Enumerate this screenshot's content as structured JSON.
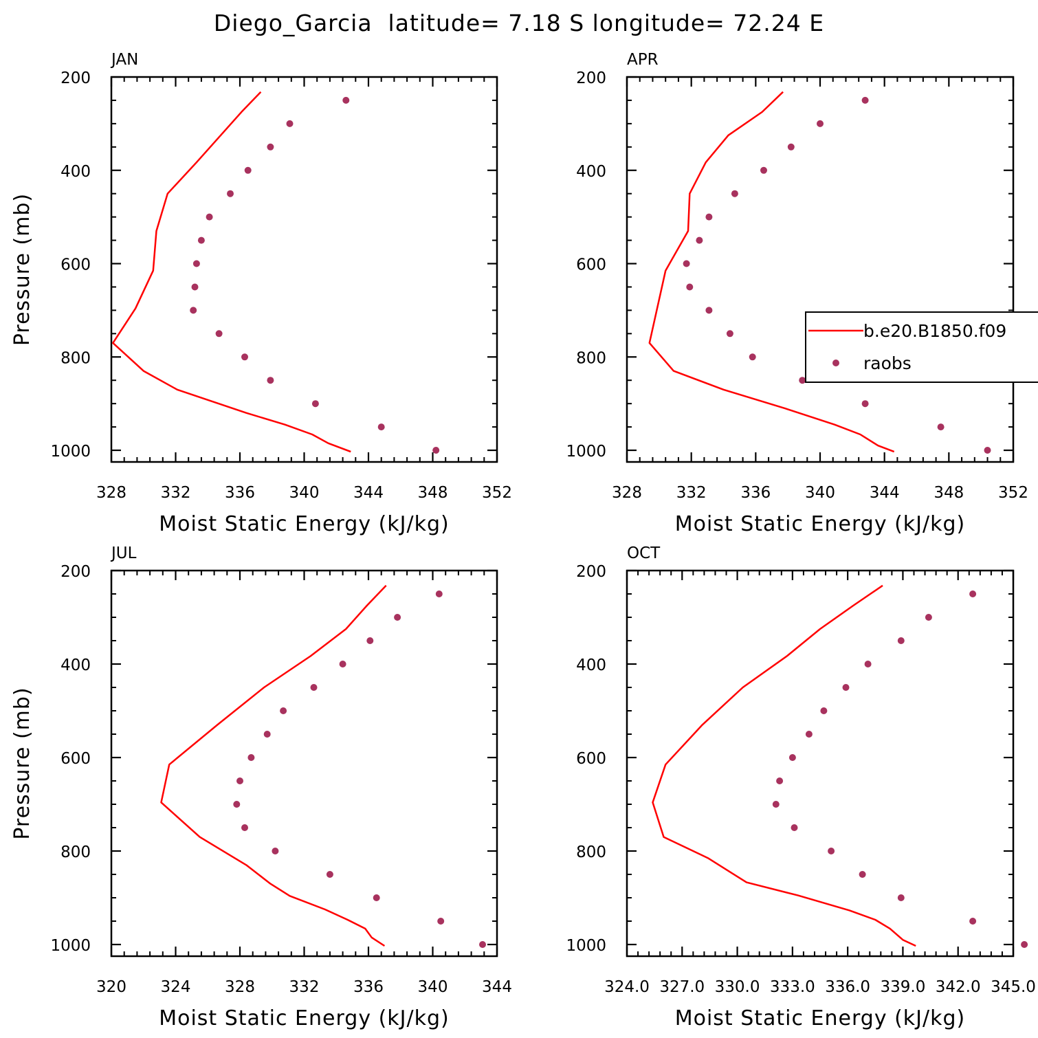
{
  "figure_title": "Diego_Garcia  latitude= 7.18 S longitude= 72.24 E",
  "colors": {
    "model": "#ff0000",
    "obs": "#a8325e",
    "axis": "#000000"
  },
  "legend": {
    "items": [
      {
        "label": "b.e20.B1850.f09",
        "style": "line"
      },
      {
        "label": "raobs",
        "style": "marker"
      }
    ]
  },
  "chart_data": [
    {
      "type": "line",
      "title": "JAN",
      "xlabel": "Moist Static Energy (kJ/kg)",
      "ylabel": "Pressure (mb)",
      "xlim": [
        328,
        352
      ],
      "ylim": [
        200,
        1025
      ],
      "y_reversed": true,
      "xticks": [
        328,
        332,
        336,
        340,
        344,
        348,
        352
      ],
      "xtick_labels": [
        "328",
        "332",
        "336",
        "340",
        "344",
        "348",
        "352"
      ],
      "yticks": [
        200,
        400,
        600,
        800,
        1000
      ],
      "yminor": [
        250,
        300,
        350,
        450,
        500,
        550,
        650,
        700,
        750,
        850,
        900,
        950
      ],
      "series": [
        {
          "name": "b.e20.B1850.f09",
          "style": "line",
          "points": [
            [
              337.3,
              232
            ],
            [
              336.1,
              275
            ],
            [
              333.3,
              383
            ],
            [
              331.5,
              450
            ],
            [
              330.8,
              530
            ],
            [
              330.6,
              615
            ],
            [
              329.5,
              696
            ],
            [
              328.1,
              770
            ],
            [
              330.0,
              830
            ],
            [
              332.1,
              870
            ],
            [
              336.4,
              920
            ],
            [
              338.8,
              945
            ],
            [
              340.5,
              966
            ],
            [
              341.5,
              985
            ],
            [
              342.9,
              1003
            ]
          ]
        },
        {
          "name": "raobs",
          "style": "marker",
          "points": [
            [
              342.6,
              250
            ],
            [
              339.1,
              300
            ],
            [
              337.9,
              350
            ],
            [
              336.5,
              400
            ],
            [
              335.4,
              450
            ],
            [
              334.1,
              500
            ],
            [
              333.6,
              550
            ],
            [
              333.3,
              600
            ],
            [
              333.2,
              650
            ],
            [
              333.1,
              700
            ],
            [
              334.7,
              750
            ],
            [
              336.3,
              800
            ],
            [
              337.9,
              850
            ],
            [
              340.7,
              900
            ],
            [
              344.8,
              950
            ],
            [
              348.2,
              1000
            ]
          ]
        }
      ]
    },
    {
      "type": "line",
      "title": "APR",
      "xlabel": "Moist Static Energy (kJ/kg)",
      "ylabel": "",
      "xlim": [
        328,
        352
      ],
      "ylim": [
        200,
        1025
      ],
      "y_reversed": true,
      "xticks": [
        328,
        332,
        336,
        340,
        344,
        348,
        352
      ],
      "xtick_labels": [
        "328",
        "332",
        "336",
        "340",
        "344",
        "348",
        "352"
      ],
      "yticks": [
        200,
        400,
        600,
        800,
        1000
      ],
      "yminor": [
        250,
        300,
        350,
        450,
        500,
        550,
        650,
        700,
        750,
        850,
        900,
        950
      ],
      "series": [
        {
          "name": "b.e20.B1850.f09",
          "style": "line",
          "points": [
            [
              337.7,
              232
            ],
            [
              336.4,
              275
            ],
            [
              334.3,
              325
            ],
            [
              332.9,
              383
            ],
            [
              331.9,
              450
            ],
            [
              331.8,
              530
            ],
            [
              330.4,
              615
            ],
            [
              329.4,
              770
            ],
            [
              330.9,
              830
            ],
            [
              334.0,
              870
            ],
            [
              337.8,
              910
            ],
            [
              340.9,
              945
            ],
            [
              342.5,
              966
            ],
            [
              343.6,
              990
            ],
            [
              344.6,
              1003
            ]
          ]
        },
        {
          "name": "raobs",
          "style": "marker",
          "points": [
            [
              342.8,
              250
            ],
            [
              340.0,
              300
            ],
            [
              338.2,
              350
            ],
            [
              336.5,
              400
            ],
            [
              334.7,
              450
            ],
            [
              333.1,
              500
            ],
            [
              332.5,
              550
            ],
            [
              331.7,
              600
            ],
            [
              331.9,
              650
            ],
            [
              333.1,
              700
            ],
            [
              334.4,
              750
            ],
            [
              335.8,
              800
            ],
            [
              338.9,
              850
            ],
            [
              342.8,
              900
            ],
            [
              347.5,
              950
            ],
            [
              350.4,
              1000
            ]
          ]
        }
      ]
    },
    {
      "type": "line",
      "title": "JUL",
      "xlabel": "Moist Static Energy (kJ/kg)",
      "ylabel": "Pressure (mb)",
      "xlim": [
        320,
        344
      ],
      "ylim": [
        200,
        1025
      ],
      "y_reversed": true,
      "xticks": [
        320,
        324,
        328,
        332,
        336,
        340,
        344
      ],
      "xtick_labels": [
        "320",
        "324",
        "328",
        "332",
        "336",
        "340",
        "344"
      ],
      "yticks": [
        200,
        400,
        600,
        800,
        1000
      ],
      "yminor": [
        250,
        300,
        350,
        450,
        500,
        550,
        650,
        700,
        750,
        850,
        900,
        950
      ],
      "series": [
        {
          "name": "b.e20.B1850.f09",
          "style": "line",
          "points": [
            [
              337.1,
              232
            ],
            [
              335.9,
              275
            ],
            [
              334.6,
              325
            ],
            [
              332.4,
              383
            ],
            [
              329.5,
              450
            ],
            [
              326.6,
              530
            ],
            [
              323.6,
              615
            ],
            [
              323.1,
              696
            ],
            [
              325.5,
              770
            ],
            [
              328.4,
              830
            ],
            [
              329.9,
              870
            ],
            [
              331.1,
              896
            ],
            [
              333.3,
              925
            ],
            [
              334.7,
              947
            ],
            [
              335.8,
              966
            ],
            [
              336.2,
              985
            ],
            [
              337.0,
              1003
            ]
          ]
        },
        {
          "name": "raobs",
          "style": "marker",
          "points": [
            [
              340.4,
              250
            ],
            [
              337.8,
              300
            ],
            [
              336.1,
              350
            ],
            [
              334.4,
              400
            ],
            [
              332.6,
              450
            ],
            [
              330.7,
              500
            ],
            [
              329.7,
              550
            ],
            [
              328.7,
              600
            ],
            [
              328.0,
              650
            ],
            [
              327.8,
              700
            ],
            [
              328.3,
              750
            ],
            [
              330.2,
              800
            ],
            [
              333.6,
              850
            ],
            [
              336.5,
              900
            ],
            [
              340.5,
              950
            ],
            [
              343.1,
              1000
            ]
          ]
        }
      ]
    },
    {
      "type": "line",
      "title": "OCT",
      "xlabel": "Moist Static Energy (kJ/kg)",
      "ylabel": "",
      "xlim": [
        324,
        345
      ],
      "ylim": [
        200,
        1025
      ],
      "y_reversed": true,
      "xticks": [
        324,
        327,
        330,
        333,
        336,
        339,
        342,
        345
      ],
      "xtick_labels": [
        "324.0",
        "327.0",
        "330.0",
        "333.0",
        "336.0",
        "339.0",
        "342.0",
        "345.0"
      ],
      "yticks": [
        200,
        400,
        600,
        800,
        1000
      ],
      "yminor": [
        250,
        300,
        350,
        450,
        500,
        550,
        650,
        700,
        750,
        850,
        900,
        950
      ],
      "series": [
        {
          "name": "b.e20.B1850.f09",
          "style": "line",
          "points": [
            [
              337.9,
              232
            ],
            [
              336.3,
              275
            ],
            [
              334.5,
              325
            ],
            [
              332.7,
              383
            ],
            [
              330.3,
              450
            ],
            [
              328.1,
              530
            ],
            [
              326.1,
              615
            ],
            [
              325.4,
              696
            ],
            [
              326.0,
              770
            ],
            [
              328.4,
              815
            ],
            [
              330.5,
              867
            ],
            [
              333.3,
              895
            ],
            [
              336.1,
              927
            ],
            [
              337.5,
              947
            ],
            [
              338.3,
              966
            ],
            [
              339.0,
              990
            ],
            [
              339.7,
              1003
            ]
          ]
        },
        {
          "name": "raobs",
          "style": "marker",
          "points": [
            [
              342.8,
              250
            ],
            [
              340.4,
              300
            ],
            [
              338.9,
              350
            ],
            [
              337.1,
              400
            ],
            [
              335.9,
              450
            ],
            [
              334.7,
              500
            ],
            [
              333.9,
              550
            ],
            [
              333.0,
              600
            ],
            [
              332.3,
              650
            ],
            [
              332.1,
              700
            ],
            [
              333.1,
              750
            ],
            [
              335.1,
              800
            ],
            [
              336.8,
              850
            ],
            [
              338.9,
              900
            ],
            [
              342.8,
              950
            ],
            [
              345.6,
              1000
            ]
          ]
        }
      ]
    }
  ]
}
